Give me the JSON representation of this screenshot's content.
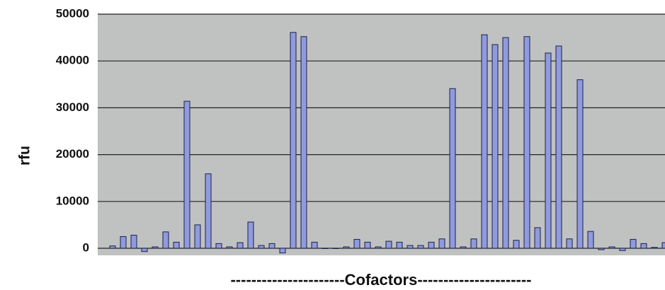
{
  "chart_data": {
    "type": "bar",
    "ylabel": "rfu",
    "xlabel": "----------------------Cofactors----------------------",
    "categories": [
      null,
      null,
      null,
      null,
      null,
      null,
      null,
      null,
      null,
      null,
      null,
      null,
      null,
      null,
      null,
      null,
      null,
      null,
      null,
      null,
      null,
      null,
      null,
      null,
      null,
      null,
      null,
      null,
      null,
      null,
      null,
      null,
      null,
      null,
      null,
      null,
      null,
      null,
      null,
      null,
      null,
      null,
      null,
      null,
      null,
      null,
      null,
      null,
      null,
      null,
      null,
      null,
      null
    ],
    "values": [
      500,
      2500,
      2800,
      -700,
      300,
      3500,
      1300,
      31400,
      5000,
      15900,
      1000,
      300,
      1200,
      5600,
      600,
      1000,
      -1000,
      46100,
      45200,
      1300,
      0,
      0,
      300,
      1900,
      1300,
      300,
      1500,
      1300,
      600,
      600,
      1300,
      2000,
      34100,
      300,
      2000,
      45600,
      43500,
      45000,
      1700,
      45200,
      4400,
      41700,
      43200,
      2000,
      36000,
      3600,
      -300,
      300,
      -500,
      1900,
      1000,
      200,
      1200
    ],
    "color": "#8f9bdc",
    "ylim": [
      -1500,
      50000
    ],
    "yticks": [
      0,
      10000,
      20000,
      30000,
      40000,
      50000
    ],
    "grid": true
  }
}
